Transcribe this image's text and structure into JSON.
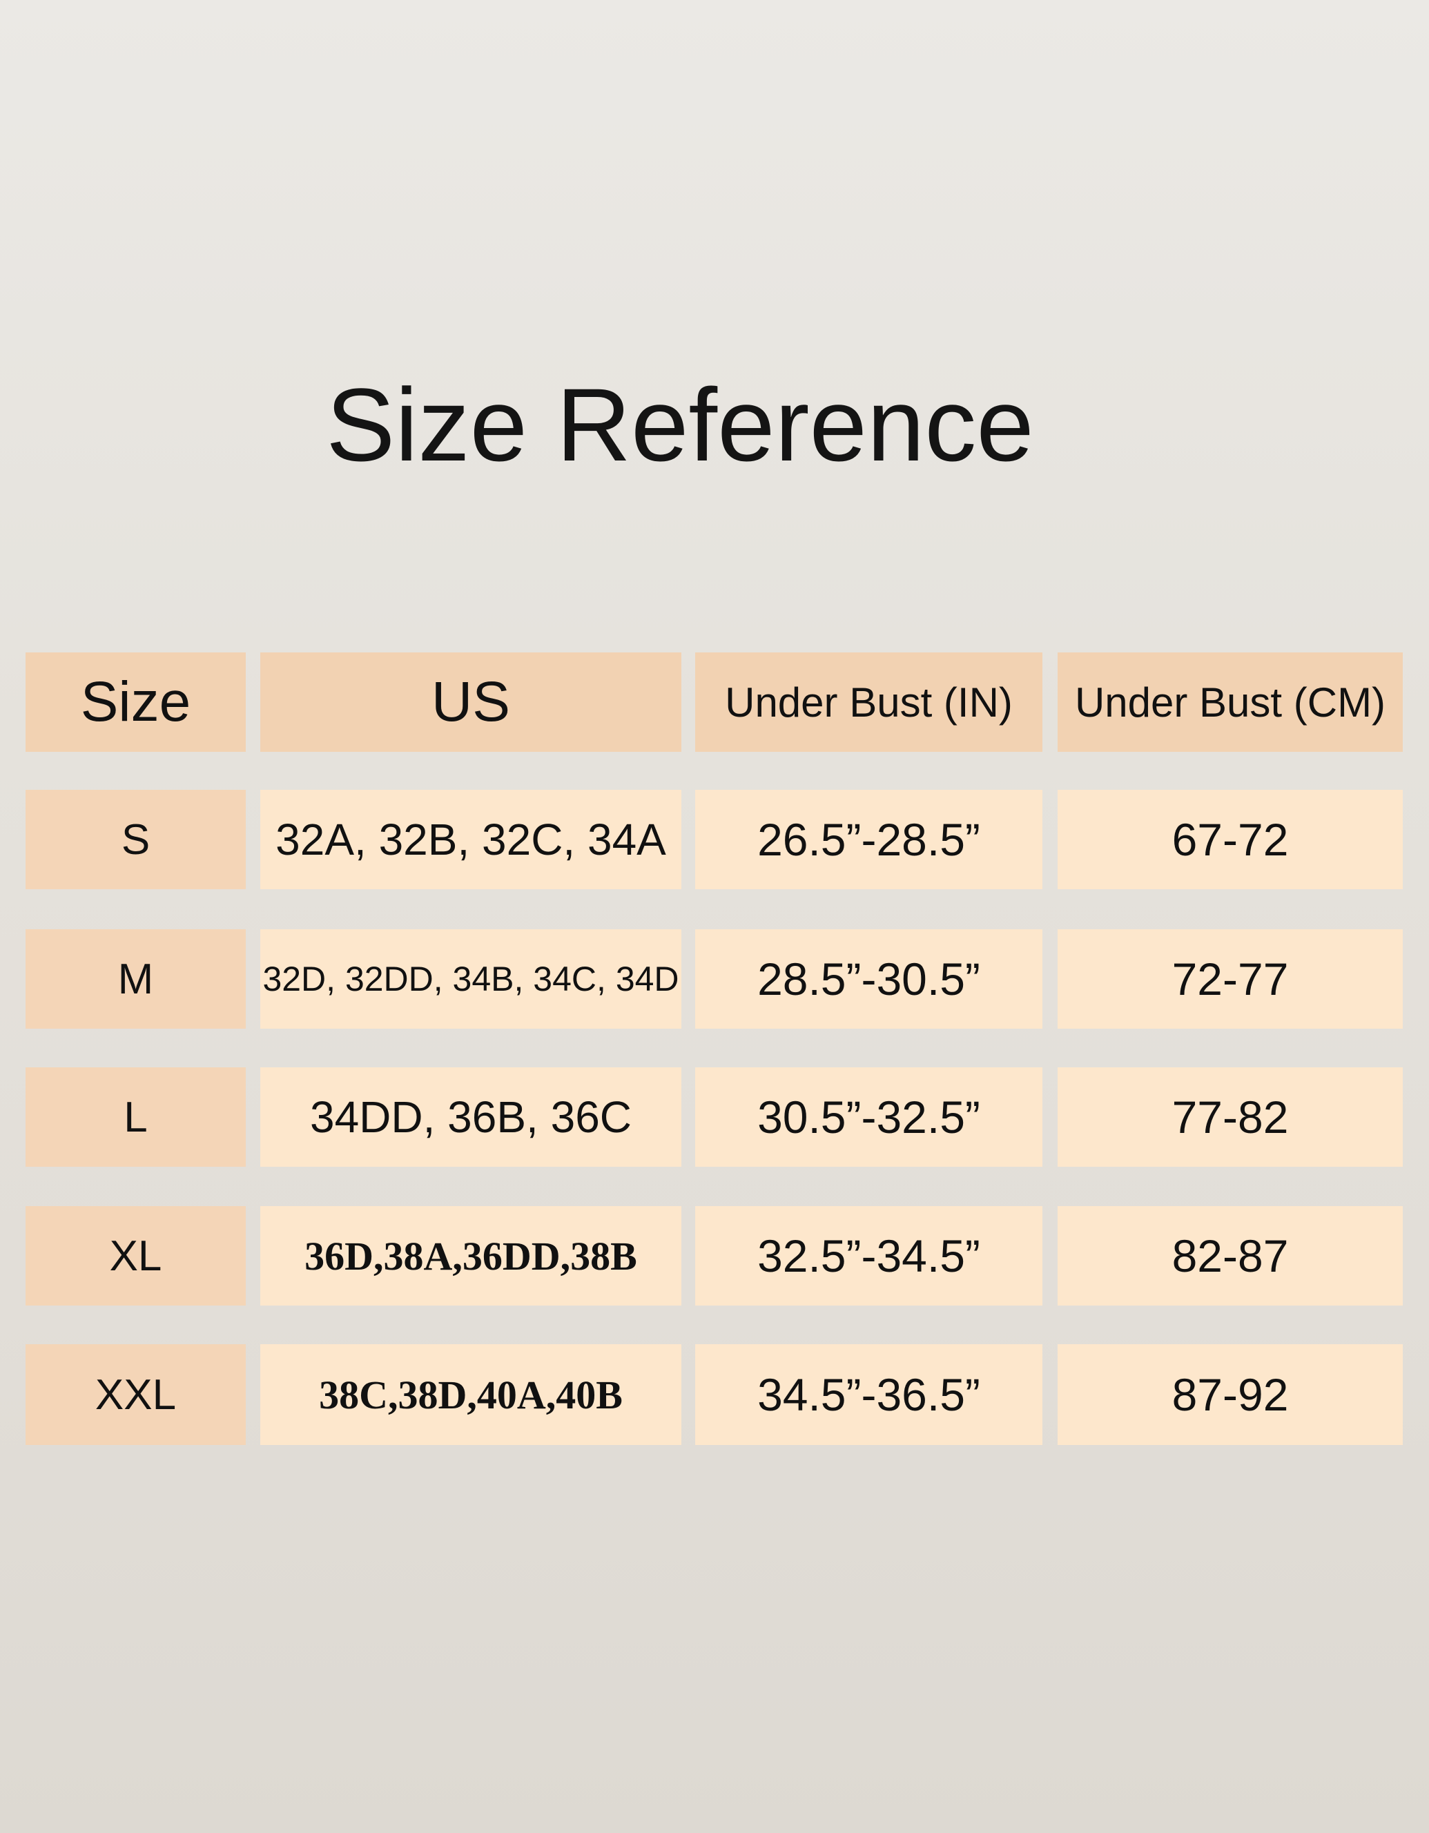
{
  "title": "Size Reference",
  "colors": {
    "header_bg": "#f2d2b2",
    "size_cell_bg": "#f4d5b7",
    "value_cell_bg": "#fde7cc",
    "background": "#e5e2dc"
  },
  "table": {
    "headers": [
      "Size",
      "US",
      "Under Bust (IN)",
      "Under Bust (CM)"
    ],
    "rows": [
      {
        "size": "S",
        "us": "32A, 32B, 32C, 34A",
        "in": "26.5”-28.5”",
        "cm": "67-72"
      },
      {
        "size": "M",
        "us": "32D, 32DD, 34B, 34C, 34D",
        "in": "28.5”-30.5”",
        "cm": "72-77"
      },
      {
        "size": "L",
        "us": "34DD, 36B, 36C",
        "in": "30.5”-32.5”",
        "cm": "77-82"
      },
      {
        "size": "XL",
        "us": "36D,38A,36DD,38B",
        "in": "32.5”-34.5”",
        "cm": "82-87"
      },
      {
        "size": "XXL",
        "us": "38C,38D,40A,40B",
        "in": "34.5”-36.5”",
        "cm": "87-92"
      }
    ]
  }
}
